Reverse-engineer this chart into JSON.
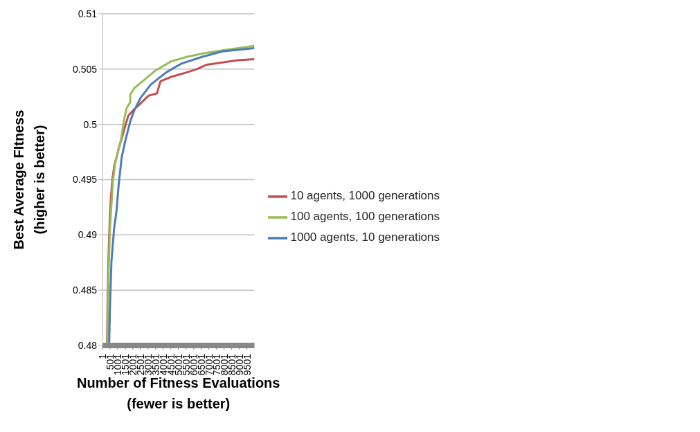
{
  "chart_data": {
    "type": "line",
    "xlabel": "Number of Fitness Evaluations\n(fewer is better)",
    "ylabel": "Best Average FItness\n(higher is better)",
    "xlim": [
      1,
      10000
    ],
    "xticks": [
      1,
      501,
      1001,
      1501,
      2001,
      2501,
      3001,
      3501,
      4001,
      4501,
      5001,
      5501,
      6001,
      6501,
      7001,
      7501,
      8001,
      8501,
      9001,
      9501
    ],
    "ylim": [
      0.48,
      0.51
    ],
    "yticks": [
      0.48,
      0.485,
      0.49,
      0.495,
      0.5,
      0.505,
      0.51
    ],
    "grid": "y",
    "legend": "right",
    "marker": "none",
    "line_style": "solid",
    "series": [
      {
        "name": "10 agents, 1000 generations",
        "color": "#c0504d",
        "x": [
          303,
          344,
          391,
          438,
          492,
          559,
          660,
          794,
          962,
          1096,
          1264,
          1466,
          1701,
          2037,
          2508,
          3045,
          3583,
          3818,
          4524,
          5531,
          6203,
          6875,
          7883,
          8891,
          10000
        ],
        "values": [
          0.48,
          0.4846,
          0.4876,
          0.4897,
          0.4918,
          0.4934,
          0.4951,
          0.4964,
          0.4972,
          0.498,
          0.4987,
          0.4997,
          0.5008,
          0.5013,
          0.5019,
          0.5026,
          0.5028,
          0.5039,
          0.5043,
          0.5047,
          0.505,
          0.5054,
          0.5056,
          0.5058,
          0.5059
        ]
      },
      {
        "name": "100 agents, 100 generations",
        "color": "#9bbb59",
        "x": [
          323,
          371,
          424,
          492,
          592,
          693,
          827,
          995,
          1164,
          1298,
          1433,
          1600,
          1822,
          1836,
          2104,
          2642,
          3516,
          4524,
          5531,
          6539,
          7883,
          10000
        ],
        "values": [
          0.48,
          0.4844,
          0.4876,
          0.4905,
          0.4928,
          0.4949,
          0.4964,
          0.4974,
          0.4982,
          0.4993,
          0.5005,
          0.5015,
          0.502,
          0.5027,
          0.5033,
          0.5039,
          0.5049,
          0.5057,
          0.5061,
          0.5064,
          0.5067,
          0.5071
        ]
      },
      {
        "name": "1000 agents, 10 generations",
        "color": "#4a7ebb",
        "x": [
          438,
          492,
          592,
          760,
          928,
          1063,
          1264,
          1500,
          1836,
          2104,
          2508,
          3180,
          4187,
          5195,
          6539,
          7883,
          10000
        ],
        "values": [
          0.48,
          0.4834,
          0.4876,
          0.4905,
          0.4922,
          0.4945,
          0.497,
          0.4985,
          0.5003,
          0.5013,
          0.5024,
          0.5036,
          0.5047,
          0.5055,
          0.5061,
          0.5066,
          0.5069
        ]
      }
    ]
  }
}
